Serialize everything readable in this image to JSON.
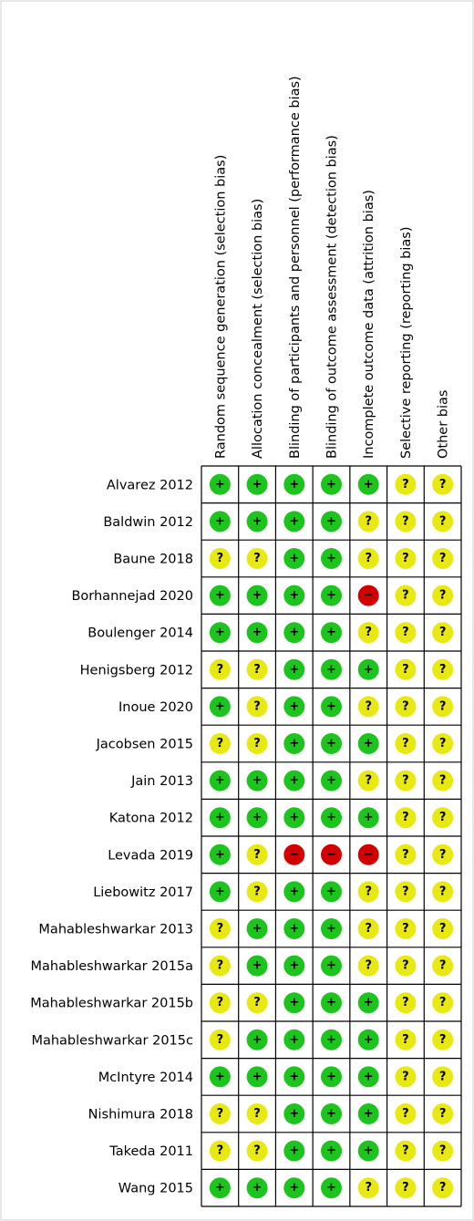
{
  "columns": [
    "Random sequence generation (selection bias)",
    "Allocation concealment (selection bias)",
    "Blinding of participants and personnel (performance bias)",
    "Blinding of outcome assessment (detection bias)",
    "Incomplete outcome data (attrition bias)",
    "Selective reporting (reporting bias)",
    "Other bias"
  ],
  "rows": [
    {
      "study": "Alvarez 2012",
      "judgments": [
        "+",
        "+",
        "+",
        "+",
        "+",
        "?",
        "?"
      ]
    },
    {
      "study": "Baldwin 2012",
      "judgments": [
        "+",
        "+",
        "+",
        "+",
        "?",
        "?",
        "?"
      ]
    },
    {
      "study": "Baune 2018",
      "judgments": [
        "?",
        "?",
        "+",
        "+",
        "?",
        "?",
        "?"
      ]
    },
    {
      "study": "Borhannejad 2020",
      "judgments": [
        "+",
        "+",
        "+",
        "+",
        "−",
        "?",
        "?"
      ]
    },
    {
      "study": "Boulenger 2014",
      "judgments": [
        "+",
        "+",
        "+",
        "+",
        "?",
        "?",
        "?"
      ]
    },
    {
      "study": "Henigsberg 2012",
      "judgments": [
        "?",
        "?",
        "+",
        "+",
        "+",
        "?",
        "?"
      ]
    },
    {
      "study": "Inoue 2020",
      "judgments": [
        "+",
        "?",
        "+",
        "+",
        "?",
        "?",
        "?"
      ]
    },
    {
      "study": "Jacobsen 2015",
      "judgments": [
        "?",
        "?",
        "+",
        "+",
        "+",
        "?",
        "?"
      ]
    },
    {
      "study": "Jain 2013",
      "judgments": [
        "+",
        "+",
        "+",
        "+",
        "?",
        "?",
        "?"
      ]
    },
    {
      "study": "Katona 2012",
      "judgments": [
        "+",
        "+",
        "+",
        "+",
        "+",
        "?",
        "?"
      ]
    },
    {
      "study": "Levada 2019",
      "judgments": [
        "+",
        "?",
        "−",
        "−",
        "−",
        "?",
        "?"
      ]
    },
    {
      "study": "Liebowitz 2017",
      "judgments": [
        "+",
        "?",
        "+",
        "+",
        "?",
        "?",
        "?"
      ]
    },
    {
      "study": "Mahableshwarkar 2013",
      "judgments": [
        "?",
        "+",
        "+",
        "+",
        "?",
        "?",
        "?"
      ]
    },
    {
      "study": "Mahableshwarkar 2015a",
      "judgments": [
        "?",
        "+",
        "+",
        "+",
        "?",
        "?",
        "?"
      ]
    },
    {
      "study": "Mahableshwarkar 2015b",
      "judgments": [
        "?",
        "?",
        "+",
        "+",
        "+",
        "?",
        "?"
      ]
    },
    {
      "study": "Mahableshwarkar 2015c",
      "judgments": [
        "?",
        "+",
        "+",
        "+",
        "+",
        "?",
        "?"
      ]
    },
    {
      "study": "McIntyre 2014",
      "judgments": [
        "+",
        "+",
        "+",
        "+",
        "+",
        "?",
        "?"
      ]
    },
    {
      "study": "Nishimura 2018",
      "judgments": [
        "?",
        "?",
        "+",
        "+",
        "+",
        "?",
        "?"
      ]
    },
    {
      "study": "Takeda 2011",
      "judgments": [
        "?",
        "?",
        "+",
        "+",
        "+",
        "?",
        "?"
      ]
    },
    {
      "study": "Wang 2015",
      "judgments": [
        "+",
        "+",
        "+",
        "+",
        "?",
        "?",
        "?"
      ]
    }
  ]
}
